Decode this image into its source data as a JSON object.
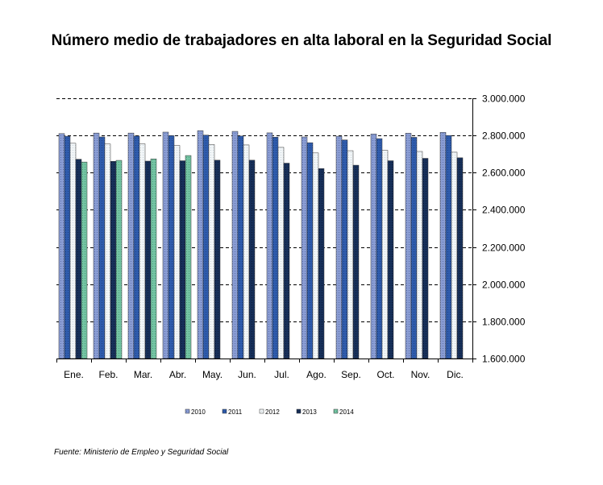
{
  "chart_data": {
    "type": "bar",
    "title": "Número medio de trabajadores en alta laboral en la Seguridad Social",
    "categories": [
      "Ene.",
      "Feb.",
      "Mar.",
      "Abr.",
      "May.",
      "Jun.",
      "Jul.",
      "Ago.",
      "Sep.",
      "Oct.",
      "Nov.",
      "Dic."
    ],
    "series": [
      {
        "name": "2010",
        "color": "#7f93cc",
        "values": [
          2810000,
          2813000,
          2813000,
          2818000,
          2826000,
          2822000,
          2814000,
          2792000,
          2796000,
          2808000,
          2812000,
          2817000
        ]
      },
      {
        "name": "2011",
        "color": "#2d5aa8",
        "values": [
          2796000,
          2792000,
          2797000,
          2799000,
          2802000,
          2797000,
          2791000,
          2761000,
          2776000,
          2783000,
          2790000,
          2800000
        ]
      },
      {
        "name": "2012",
        "color": "#eaf0f4",
        "values": [
          2758000,
          2754000,
          2755000,
          2746000,
          2751000,
          2749000,
          2736000,
          2706000,
          2718000,
          2720000,
          2714000,
          2710000
        ]
      },
      {
        "name": "2013",
        "color": "#152a4f",
        "values": [
          2672000,
          2661000,
          2662000,
          2664000,
          2667000,
          2667000,
          2651000,
          2622000,
          2640000,
          2664000,
          2677000,
          2680000
        ]
      },
      {
        "name": "2014",
        "color": "#6fbf9e",
        "values": [
          2657000,
          2666000,
          2674000,
          2692000,
          null,
          null,
          null,
          null,
          null,
          null,
          null,
          null
        ]
      }
    ],
    "ylim": [
      1600000,
      3000000
    ],
    "yticks": [
      "1.600.000",
      "1.800.000",
      "2.000.000",
      "2.200.000",
      "2.400.000",
      "2.600.000",
      "2.800.000",
      "3.000.000"
    ],
    "ytick_values": [
      1600000,
      1800000,
      2000000,
      2200000,
      2400000,
      2600000,
      2800000,
      3000000
    ],
    "y_axis_side": "right",
    "grid": "dashed horizontal",
    "legend_placement": "bottom"
  },
  "source": "Fuente: Ministerio de Empleo y Seguridad Social"
}
